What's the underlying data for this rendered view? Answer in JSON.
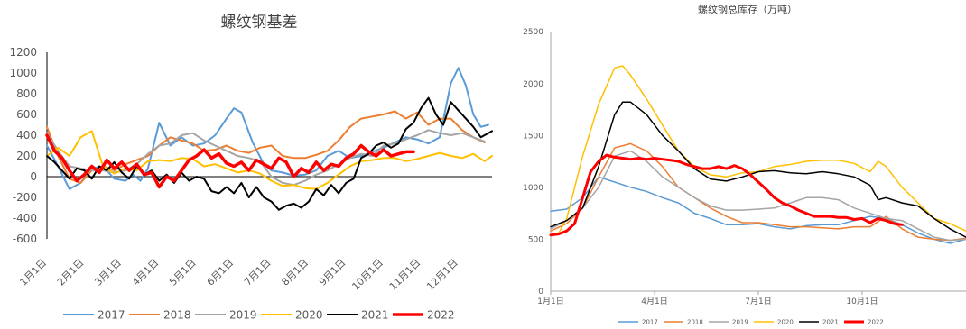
{
  "chart_data": [
    {
      "type": "line",
      "title": "螺纹钢基差",
      "xlabel": "",
      "ylabel": "",
      "ylim": [
        -600,
        1200
      ],
      "yticks": [
        -600,
        -400,
        -200,
        0,
        200,
        400,
        600,
        800,
        1000,
        1200
      ],
      "x_tick_labels": [
        "1月1日",
        "2月1日",
        "3月1日",
        "4月1日",
        "5月1日",
        "6月1日",
        "7月1日",
        "8月1日",
        "9月1日",
        "10月1日",
        "11月1日",
        "12月1日"
      ],
      "x_domain": [
        1,
        12.9
      ],
      "grid": false,
      "legend_position": "bottom",
      "series": [
        {
          "name": "2017",
          "color": "#5b9bd5",
          "x": [
            1,
            1.3,
            1.6,
            1.9,
            2.2,
            2.5,
            2.8,
            3.1,
            3.3,
            3.5,
            3.7,
            4.0,
            4.3,
            4.6,
            4.9,
            5.2,
            5.5,
            5.8,
            6.0,
            6.2,
            6.5,
            6.8,
            7.0,
            7.3,
            7.6,
            7.9,
            8.2,
            8.5,
            8.8,
            9.1,
            9.4,
            9.7,
            10.0,
            10.3,
            10.6,
            10.9,
            11.2,
            11.5,
            11.8,
            12.0,
            12.2,
            12.4,
            12.6,
            12.8
          ],
          "values": [
            300,
            100,
            -120,
            -60,
            80,
            100,
            -20,
            -40,
            20,
            -40,
            80,
            520,
            300,
            380,
            300,
            320,
            400,
            560,
            660,
            620,
            330,
            120,
            60,
            40,
            10,
            20,
            60,
            200,
            250,
            180,
            200,
            240,
            280,
            330,
            380,
            360,
            320,
            380,
            900,
            1050,
            880,
            600,
            480,
            500
          ]
        },
        {
          "name": "2018",
          "color": "#ed7d31",
          "x": [
            1,
            1.3,
            1.6,
            1.9,
            2.2,
            2.5,
            2.8,
            3.1,
            3.4,
            3.7,
            4.0,
            4.3,
            4.6,
            4.9,
            5.2,
            5.5,
            5.8,
            6.1,
            6.4,
            6.7,
            7.0,
            7.3,
            7.6,
            7.9,
            8.2,
            8.5,
            8.8,
            9.1,
            9.4,
            9.7,
            10.0,
            10.3,
            10.6,
            10.9,
            11.2,
            11.5,
            11.8,
            12.1,
            12.4,
            12.7
          ],
          "values": [
            480,
            200,
            -20,
            -60,
            60,
            100,
            60,
            120,
            160,
            200,
            300,
            380,
            350,
            320,
            250,
            260,
            300,
            250,
            230,
            280,
            300,
            200,
            180,
            180,
            210,
            250,
            350,
            480,
            560,
            580,
            600,
            630,
            560,
            620,
            500,
            560,
            560,
            450,
            380,
            330
          ]
        },
        {
          "name": "2019",
          "color": "#a5a5a5",
          "x": [
            1,
            1.3,
            1.6,
            1.9,
            2.2,
            2.5,
            2.8,
            3.1,
            3.4,
            3.7,
            4.0,
            4.3,
            4.6,
            4.9,
            5.2,
            5.5,
            5.8,
            6.1,
            6.4,
            6.7,
            7.0,
            7.3,
            7.6,
            7.9,
            8.2,
            8.5,
            8.8,
            9.1,
            9.4,
            9.7,
            10.0,
            10.3,
            10.6,
            10.9,
            11.2,
            11.5,
            11.8,
            12.1,
            12.4,
            12.7
          ],
          "values": [
            420,
            250,
            100,
            80,
            60,
            60,
            40,
            60,
            120,
            220,
            300,
            320,
            400,
            420,
            350,
            300,
            250,
            200,
            180,
            150,
            0,
            -60,
            -80,
            -40,
            20,
            60,
            120,
            180,
            220,
            200,
            300,
            320,
            360,
            400,
            450,
            420,
            400,
            420,
            380,
            340
          ]
        },
        {
          "name": "2020",
          "color": "#ffc000",
          "x": [
            1,
            1.3,
            1.6,
            1.9,
            2.2,
            2.5,
            2.8,
            3.1,
            3.4,
            3.7,
            4.0,
            4.3,
            4.6,
            4.9,
            5.2,
            5.5,
            5.8,
            6.1,
            6.4,
            6.7,
            7.0,
            7.3,
            7.6,
            7.9,
            8.2,
            8.5,
            8.8,
            9.1,
            9.4,
            9.7,
            10.0,
            10.3,
            10.6,
            10.9,
            11.2,
            11.5,
            11.8,
            12.1,
            12.4,
            12.7,
            12.9
          ],
          "values": [
            200,
            280,
            200,
            380,
            440,
            100,
            30,
            80,
            60,
            150,
            160,
            150,
            180,
            170,
            100,
            120,
            80,
            40,
            60,
            30,
            -40,
            -90,
            -80,
            -110,
            -120,
            -60,
            20,
            100,
            150,
            160,
            180,
            180,
            150,
            170,
            200,
            230,
            200,
            180,
            220,
            150,
            200
          ]
        },
        {
          "name": "2021",
          "color": "#000000",
          "x": [
            1,
            1.2,
            1.4,
            1.6,
            1.8,
            2.0,
            2.2,
            2.4,
            2.6,
            2.8,
            3.0,
            3.2,
            3.4,
            3.6,
            3.8,
            4.0,
            4.2,
            4.4,
            4.6,
            4.8,
            5.0,
            5.2,
            5.4,
            5.6,
            5.8,
            6.0,
            6.2,
            6.4,
            6.6,
            6.8,
            7.0,
            7.2,
            7.4,
            7.6,
            7.8,
            8.0,
            8.2,
            8.4,
            8.6,
            8.8,
            9.0,
            9.2,
            9.4,
            9.6,
            9.8,
            10.0,
            10.2,
            10.4,
            10.6,
            10.8,
            11.0,
            11.2,
            11.4,
            11.6,
            11.8,
            12.0,
            12.2,
            12.4,
            12.6,
            12.8,
            12.9
          ],
          "values": [
            200,
            140,
            60,
            -20,
            80,
            60,
            -20,
            100,
            60,
            140,
            40,
            -20,
            100,
            20,
            60,
            -40,
            20,
            -60,
            40,
            -40,
            0,
            -20,
            -140,
            -160,
            -100,
            -160,
            -60,
            -200,
            -100,
            -200,
            -240,
            -320,
            -280,
            -260,
            -300,
            -240,
            -120,
            -180,
            -80,
            -160,
            -60,
            -20,
            180,
            220,
            300,
            330,
            280,
            320,
            460,
            520,
            660,
            760,
            600,
            500,
            720,
            640,
            560,
            480,
            380,
            420,
            440
          ]
        },
        {
          "name": "2022",
          "color": "#ff0000",
          "bold": true,
          "x": [
            1,
            1.2,
            1.4,
            1.6,
            1.8,
            2.0,
            2.2,
            2.4,
            2.6,
            2.8,
            3.0,
            3.2,
            3.4,
            3.6,
            3.8,
            4.0,
            4.2,
            4.4,
            4.6,
            4.8,
            5.0,
            5.2,
            5.4,
            5.6,
            5.8,
            6.0,
            6.2,
            6.4,
            6.6,
            6.8,
            7.0,
            7.2,
            7.4,
            7.6,
            7.8,
            8.0,
            8.2,
            8.4,
            8.6,
            8.8,
            9.0,
            9.2,
            9.4,
            9.6,
            9.8,
            10.0,
            10.2,
            10.4,
            10.6,
            10.8
          ],
          "values": [
            400,
            250,
            180,
            60,
            -40,
            20,
            100,
            40,
            160,
            80,
            140,
            60,
            120,
            20,
            40,
            -100,
            0,
            -40,
            60,
            160,
            200,
            260,
            180,
            220,
            130,
            100,
            140,
            60,
            160,
            120,
            80,
            180,
            140,
            0,
            80,
            40,
            140,
            60,
            120,
            100,
            180,
            220,
            300,
            240,
            200,
            260,
            200,
            220,
            240,
            240
          ]
        }
      ]
    },
    {
      "type": "line",
      "title": "螺纹钢总库存（万吨）",
      "xlabel": "",
      "ylabel": "",
      "ylim": [
        0,
        2500
      ],
      "yticks": [
        0,
        500,
        1000,
        1500,
        2000,
        2500
      ],
      "x_tick_labels": [
        "1月1日",
        "4月1日",
        "7月1日",
        "10月1日"
      ],
      "x_domain": [
        0,
        52
      ],
      "grid": false,
      "legend_position": "bottom",
      "series": [
        {
          "name": "2017",
          "color": "#5b9bd5",
          "x": [
            0,
            2,
            4,
            6,
            8,
            10,
            12,
            14,
            16,
            18,
            20,
            22,
            24,
            26,
            28,
            30,
            32,
            34,
            36,
            38,
            40,
            42,
            44,
            46,
            48,
            50,
            52
          ],
          "values": [
            770,
            790,
            900,
            1100,
            1050,
            1000,
            960,
            900,
            850,
            750,
            700,
            640,
            640,
            650,
            620,
            600,
            630,
            640,
            640,
            680,
            720,
            700,
            640,
            560,
            500,
            460,
            500
          ]
        },
        {
          "name": "2018",
          "color": "#ed7d31",
          "x": [
            0,
            2,
            4,
            6,
            8,
            10,
            12,
            14,
            16,
            18,
            20,
            22,
            24,
            26,
            28,
            30,
            32,
            34,
            36,
            38,
            40,
            42,
            44,
            46,
            48,
            50,
            52
          ],
          "values": [
            580,
            650,
            800,
            1100,
            1380,
            1420,
            1350,
            1200,
            1000,
            900,
            800,
            720,
            660,
            660,
            640,
            620,
            620,
            610,
            600,
            620,
            620,
            720,
            600,
            520,
            500,
            490,
            510
          ]
        },
        {
          "name": "2019",
          "color": "#a5a5a5",
          "x": [
            0,
            2,
            4,
            6,
            8,
            10,
            12,
            14,
            16,
            18,
            20,
            22,
            24,
            26,
            28,
            30,
            32,
            34,
            36,
            38,
            40,
            42,
            44,
            46,
            48,
            50,
            52
          ],
          "values": [
            600,
            680,
            800,
            1000,
            1300,
            1350,
            1250,
            1100,
            1000,
            900,
            820,
            780,
            780,
            790,
            800,
            850,
            900,
            900,
            880,
            800,
            750,
            700,
            680,
            600,
            520,
            490,
            500
          ]
        },
        {
          "name": "2020",
          "color": "#ffc000",
          "x": [
            0,
            1,
            2,
            4,
            6,
            8,
            9,
            10,
            12,
            14,
            16,
            18,
            20,
            22,
            24,
            26,
            28,
            30,
            32,
            34,
            36,
            38,
            40,
            41,
            42,
            44,
            46,
            48,
            50,
            52
          ],
          "values": [
            550,
            560,
            700,
            1300,
            1800,
            2150,
            2170,
            2080,
            1850,
            1600,
            1350,
            1200,
            1120,
            1100,
            1140,
            1150,
            1200,
            1220,
            1250,
            1260,
            1260,
            1230,
            1150,
            1250,
            1200,
            1000,
            850,
            700,
            650,
            580
          ]
        },
        {
          "name": "2021",
          "color": "#000000",
          "x": [
            0,
            2,
            4,
            6,
            8,
            9,
            10,
            12,
            14,
            16,
            18,
            20,
            22,
            24,
            26,
            28,
            30,
            32,
            34,
            36,
            38,
            40,
            41,
            42,
            44,
            46,
            48,
            50,
            52
          ],
          "values": [
            620,
            680,
            800,
            1200,
            1700,
            1820,
            1820,
            1700,
            1500,
            1350,
            1180,
            1080,
            1060,
            1100,
            1150,
            1160,
            1140,
            1130,
            1150,
            1130,
            1100,
            1020,
            880,
            900,
            850,
            820,
            700,
            600,
            520
          ]
        },
        {
          "name": "2022",
          "color": "#ff0000",
          "bold": true,
          "x": [
            0,
            1,
            2,
            3,
            4,
            5,
            6,
            7,
            8,
            9,
            10,
            11,
            12,
            13,
            14,
            15,
            16,
            17,
            18,
            19,
            20,
            21,
            22,
            23,
            24,
            25,
            26,
            27,
            28,
            29,
            30,
            31,
            32,
            33,
            34,
            35,
            36,
            37,
            38,
            39,
            40,
            41,
            42,
            43,
            44
          ],
          "values": [
            540,
            550,
            580,
            650,
            900,
            1150,
            1250,
            1310,
            1290,
            1280,
            1270,
            1280,
            1270,
            1280,
            1270,
            1260,
            1250,
            1220,
            1200,
            1180,
            1180,
            1200,
            1180,
            1210,
            1180,
            1120,
            1050,
            980,
            900,
            850,
            820,
            780,
            750,
            720,
            720,
            720,
            710,
            710,
            690,
            700,
            660,
            700,
            680,
            650,
            640
          ]
        }
      ]
    }
  ]
}
